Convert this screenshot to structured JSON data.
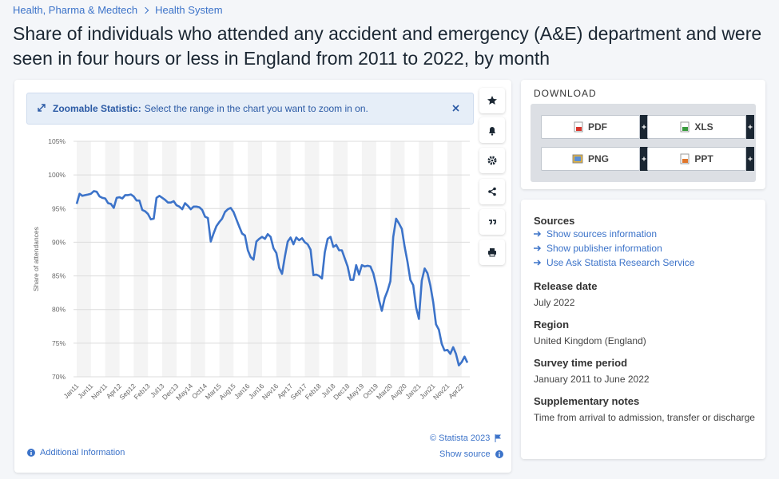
{
  "breadcrumb": [
    "Health, Pharma & Medtech",
    "Health System"
  ],
  "title": "Share of individuals who attended any accident and emergency (A&E) department and were seen in four hours or less in England from 2011 to 2022, by month",
  "zoom_banner": {
    "label": "Zoomable Statistic:",
    "text": "Select the range in the chart you want to zoom in on."
  },
  "chart_data": {
    "type": "line",
    "y_label": "Share of attendances",
    "color": "#3c73c9",
    "categories": [
      "Jan11",
      null,
      null,
      null,
      null,
      "Jun11",
      null,
      null,
      null,
      null,
      "Nov11",
      null,
      null,
      null,
      null,
      "Apr12",
      null,
      null,
      null,
      null,
      "Sep12",
      null,
      null,
      null,
      null,
      "Feb13",
      null,
      null,
      null,
      null,
      "Jul13",
      null,
      null,
      null,
      null,
      "Dec13",
      null,
      null,
      null,
      null,
      "May14",
      null,
      null,
      null,
      null,
      "Oct14",
      null,
      null,
      null,
      null,
      "Mar15",
      null,
      null,
      null,
      null,
      "Aug15",
      null,
      null,
      null,
      null,
      "Jan16",
      null,
      null,
      null,
      null,
      "Jun16",
      null,
      null,
      null,
      null,
      "Nov16",
      null,
      null,
      null,
      null,
      "Apr17",
      null,
      null,
      null,
      null,
      "Sep17",
      null,
      null,
      null,
      null,
      "Feb18",
      null,
      null,
      null,
      null,
      "Jul18",
      null,
      null,
      null,
      null,
      "Dec18",
      null,
      null,
      null,
      null,
      "May19",
      null,
      null,
      null,
      null,
      "Oct19",
      null,
      null,
      null,
      null,
      "Mar20",
      null,
      null,
      null,
      null,
      "Aug20",
      null,
      null,
      null,
      null,
      "Jan21",
      null,
      null,
      null,
      null,
      "Jun21",
      null,
      null,
      null,
      null,
      "Nov21",
      null,
      null,
      null,
      null,
      "Apr22",
      null,
      null
    ],
    "values": [
      95.7,
      97.2,
      96.9,
      97.0,
      97.1,
      97.2,
      97.6,
      97.5,
      96.8,
      96.6,
      96.5,
      95.8,
      95.7,
      95.1,
      96.6,
      96.7,
      96.5,
      97.0,
      97.0,
      97.1,
      96.8,
      96.2,
      96.2,
      94.8,
      94.6,
      94.2,
      93.4,
      93.5,
      96.6,
      96.9,
      96.6,
      96.3,
      95.9,
      95.9,
      96.1,
      95.5,
      95.3,
      94.9,
      95.8,
      95.4,
      94.9,
      95.3,
      95.3,
      95.2,
      94.8,
      93.8,
      93.6,
      90.1,
      91.3,
      92.4,
      93.0,
      93.5,
      94.5,
      94.9,
      95.1,
      94.5,
      93.4,
      92.3,
      91.3,
      91.0,
      88.8,
      87.8,
      87.4,
      90.1,
      90.5,
      90.8,
      90.5,
      91.2,
      90.8,
      89.1,
      88.4,
      86.2,
      85.3,
      87.9,
      90.1,
      90.7,
      89.7,
      90.7,
      90.3,
      90.6,
      90.0,
      89.7,
      88.9,
      85.1,
      85.2,
      85.0,
      84.6,
      88.5,
      90.5,
      90.8,
      89.3,
      89.6,
      88.8,
      88.8,
      87.6,
      86.4,
      84.4,
      84.4,
      86.6,
      85.2,
      86.6,
      86.4,
      86.5,
      86.4,
      85.4,
      83.6,
      81.4,
      79.8,
      81.7,
      82.8,
      84.2,
      90.8,
      93.5,
      92.8,
      92.0,
      89.3,
      87.1,
      84.4,
      83.6,
      80.3,
      78.6,
      84.3,
      86.1,
      85.4,
      83.6,
      81.1,
      77.8,
      77.0,
      74.9,
      73.9,
      74.0,
      73.4,
      74.4,
      73.4,
      71.7,
      72.2,
      73.0,
      72.1
    ],
    "ylim": [
      70,
      105
    ],
    "yticks": [
      {
        "value": 70,
        "label": "70%"
      },
      {
        "value": 75,
        "label": "75%"
      },
      {
        "value": 80,
        "label": "80%"
      },
      {
        "value": 85,
        "label": "85%"
      },
      {
        "value": 90,
        "label": "90%"
      },
      {
        "value": 95,
        "label": "95%"
      },
      {
        "value": 100,
        "label": "100%"
      },
      {
        "value": 105,
        "label": "105%"
      }
    ],
    "grid": true
  },
  "footer": {
    "copyright": "© Statista 2023",
    "additional": "Additional Information",
    "source": "Show source"
  },
  "download": {
    "title": "DOWNLOAD",
    "buttons": [
      "PDF",
      "XLS",
      "PNG",
      "PPT"
    ]
  },
  "info": {
    "sources_title": "Sources",
    "links": [
      "Show sources information",
      "Show publisher information",
      "Use Ask Statista Research Service"
    ],
    "sections": [
      {
        "title": "Release date",
        "text": "July 2022"
      },
      {
        "title": "Region",
        "text": "United Kingdom (England)"
      },
      {
        "title": "Survey time period",
        "text": "January 2011 to June 2022"
      },
      {
        "title": "Supplementary notes",
        "text": "Time from arrival to admission, transfer or discharge"
      }
    ]
  }
}
